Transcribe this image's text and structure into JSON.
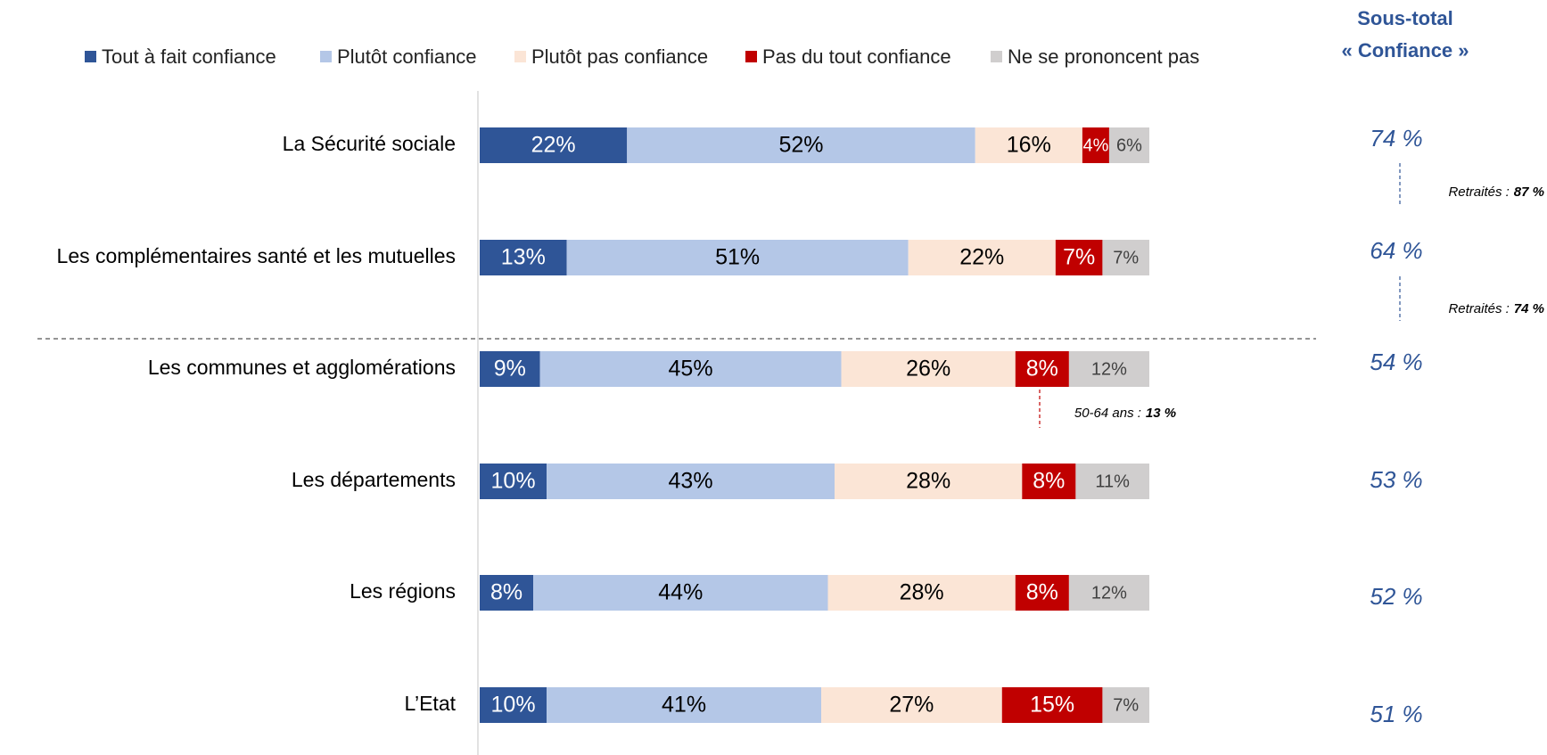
{
  "chart_data": {
    "type": "stacked_bar_horizontal",
    "categories": [
      "La Sécurité sociale",
      "Les complémentaires santé et les mutuelles",
      "Les communes et agglomérations",
      "Les départements",
      "Les régions",
      "L’Etat"
    ],
    "xlim": [
      0,
      100
    ],
    "legend": "top",
    "series": [
      {
        "name": "Tout à fait confiance",
        "color": "#2f5597",
        "values": [
          22,
          13,
          9,
          10,
          8,
          10
        ],
        "value_labels": [
          "22%",
          "13%",
          "9%",
          "10%",
          "8%",
          "10%"
        ]
      },
      {
        "name": "Plutôt confiance",
        "color": "#b4c7e7",
        "values": [
          52,
          51,
          45,
          43,
          44,
          41
        ],
        "value_labels": [
          "52%",
          "51%",
          "45%",
          "43%",
          "44%",
          "41%"
        ]
      },
      {
        "name": "Plutôt pas confiance",
        "color": "#fbe5d6",
        "values": [
          16,
          22,
          26,
          28,
          28,
          27
        ],
        "value_labels": [
          "16%",
          "22%",
          "26%",
          "28%",
          "28%",
          "27%"
        ]
      },
      {
        "name": "Pas du tout confiance",
        "color": "#c00000",
        "values": [
          4,
          7,
          8,
          8,
          8,
          15
        ],
        "value_labels": [
          "4%",
          "7%",
          "8%",
          "8%",
          "8%",
          "15%"
        ]
      },
      {
        "name": "Ne se prononcent pas",
        "color": "#d0cece",
        "values": [
          6,
          7,
          12,
          11,
          12,
          7
        ],
        "value_labels": [
          "6%",
          "7%",
          "12%",
          "11%",
          "12%",
          "7%"
        ]
      }
    ],
    "subtotal": {
      "title": [
        "Sous-total",
        "« Confiance »"
      ],
      "values": [
        74,
        64,
        54,
        53,
        52,
        51
      ],
      "value_labels": [
        "74 %",
        "64 %",
        "54 %",
        "53 %",
        "52 %",
        "51 %"
      ]
    },
    "annotations": [
      {
        "prefix": "Retraités :",
        "highlight": "87 %"
      },
      {
        "prefix": "Retraités :",
        "highlight": "74 %"
      },
      {
        "prefix": "50-64 ans :",
        "highlight": "13 %"
      }
    ]
  }
}
